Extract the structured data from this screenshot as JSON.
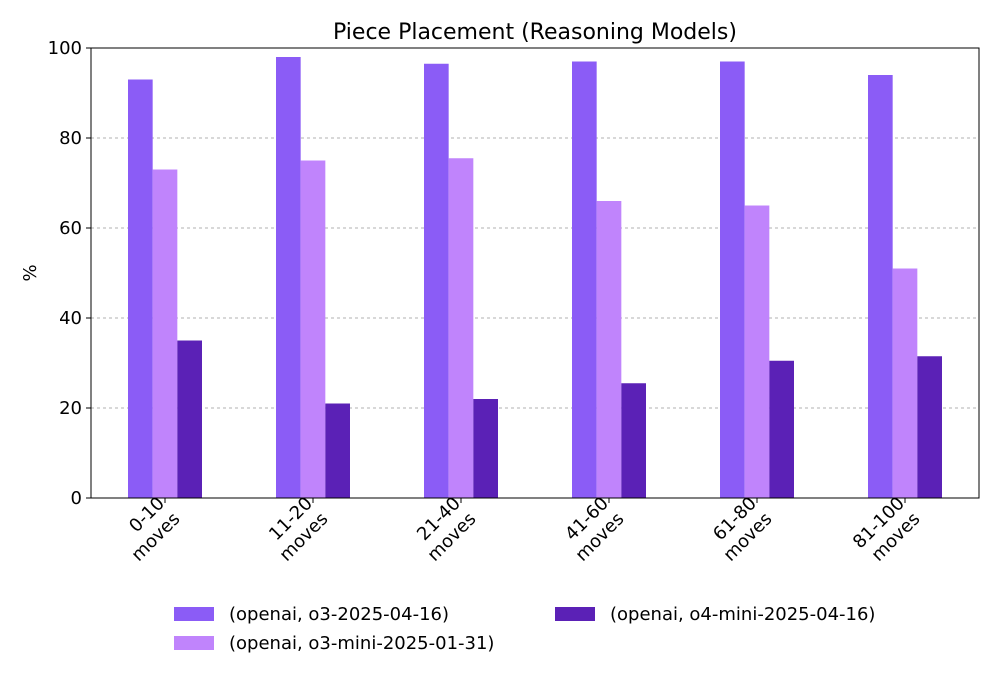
{
  "chart_data": {
    "type": "bar",
    "title": "Piece Placement (Reasoning Models)",
    "xlabel": "",
    "ylabel": "%",
    "ylim": [
      0,
      100
    ],
    "yticks": [
      0,
      20,
      40,
      60,
      80,
      100
    ],
    "grid": true,
    "legend": "bottom",
    "categories": [
      [
        "0-10",
        "moves"
      ],
      [
        "11-20",
        "moves"
      ],
      [
        "21-40",
        "moves"
      ],
      [
        "41-60",
        "moves"
      ],
      [
        "61-80",
        "moves"
      ],
      [
        "81-100",
        "moves"
      ]
    ],
    "series": [
      {
        "name": "(openai, o3-2025-04-16)",
        "color": "#8b5cf6",
        "values": [
          93,
          98,
          96.5,
          97,
          97,
          94
        ]
      },
      {
        "name": "(openai, o3-mini-2025-01-31)",
        "color": "#c084fc",
        "values": [
          73,
          75,
          75.5,
          66,
          65,
          51
        ]
      },
      {
        "name": "(openai, o4-mini-2025-04-16)",
        "color": "#5b21b6",
        "values": [
          35,
          21,
          22,
          25.5,
          30.5,
          31.5
        ]
      }
    ]
  }
}
